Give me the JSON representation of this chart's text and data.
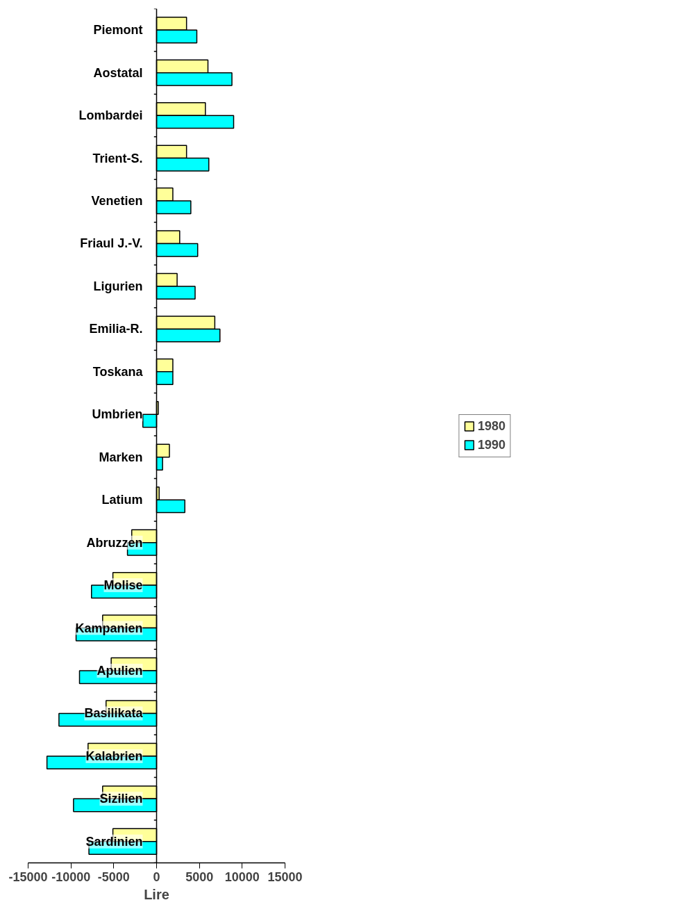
{
  "chart_data": {
    "type": "bar",
    "orientation": "horizontal",
    "xlabel": "Lire",
    "categories": [
      "Piemont",
      "Aostatal",
      "Lombardei",
      "Trient-S.",
      "Venetien",
      "Friaul J.-V.",
      "Ligurien",
      "Emilia-R.",
      "Toskana",
      "Umbrien",
      "Marken",
      "Latium",
      "Abruzzen",
      "Molise",
      "Kampanien",
      "Apulien",
      "Basilikata",
      "Kalabrien",
      "Sizilien",
      "Sardinien"
    ],
    "series": [
      {
        "name": "1980",
        "color": "#ffff99",
        "values": [
          3500,
          6000,
          5700,
          3500,
          1900,
          2700,
          2400,
          6800,
          1900,
          200,
          1500,
          300,
          -2900,
          -5100,
          -6300,
          -5300,
          -5900,
          -8000,
          -6300,
          -5100
        ]
      },
      {
        "name": "1990",
        "color": "#00ffff",
        "values": [
          4700,
          8800,
          9000,
          6100,
          4000,
          4800,
          4500,
          7400,
          1900,
          -1600,
          700,
          3300,
          -3400,
          -7600,
          -9400,
          -9000,
          -11400,
          -12800,
          -9700,
          -7900
        ]
      }
    ],
    "xlim": [
      -15000,
      15000
    ],
    "xticks": [
      -15000,
      -10000,
      -5000,
      0,
      5000,
      10000,
      15000
    ],
    "grid": false,
    "legend": "right"
  }
}
